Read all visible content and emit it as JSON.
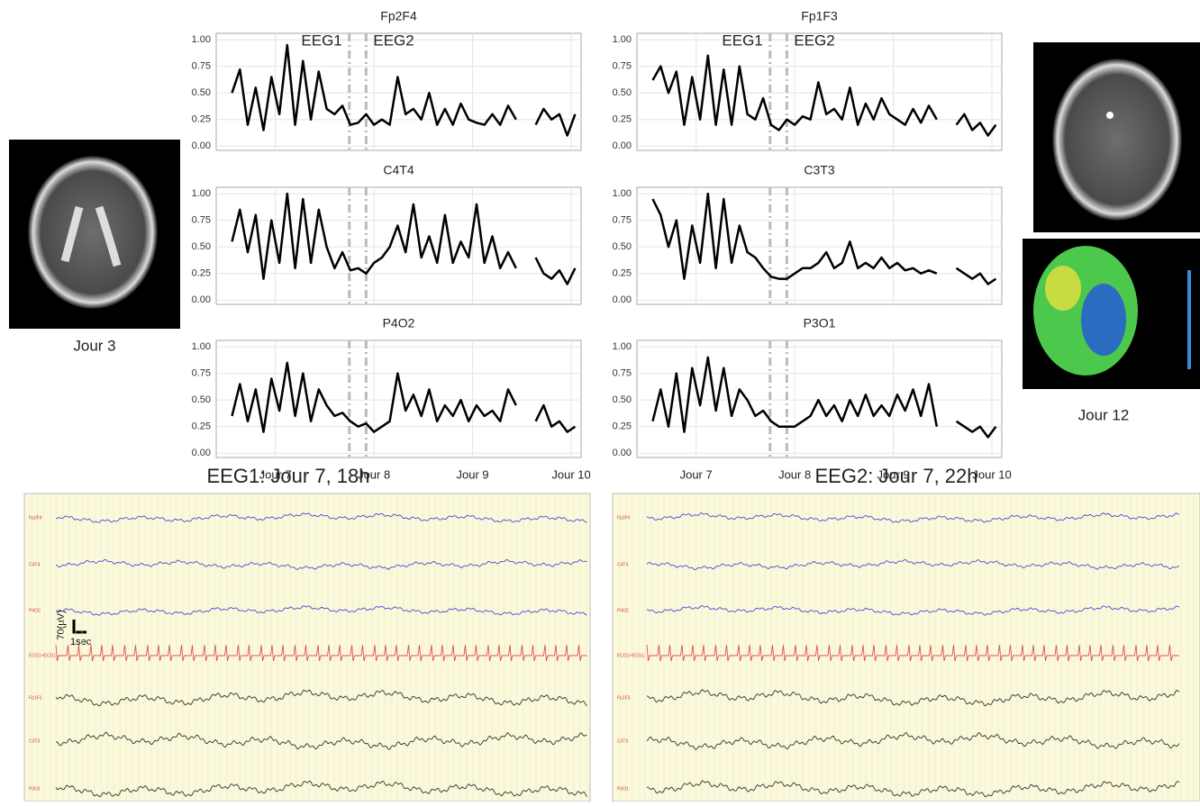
{
  "chart_data": [
    {
      "type": "line",
      "title": "Fp2F4",
      "grid": true,
      "x": [
        6.56,
        6.64,
        6.72,
        6.8,
        6.88,
        6.96,
        7.04,
        7.12,
        7.2,
        7.28,
        7.36,
        7.44,
        7.52,
        7.6,
        7.68,
        7.76,
        7.84,
        7.92,
        8.0,
        8.08,
        8.16,
        8.24,
        8.32,
        8.4,
        8.48,
        8.56,
        8.64,
        8.72,
        8.8,
        8.88,
        8.96,
        9.04,
        9.12,
        9.2,
        9.28,
        9.36,
        9.44,
        9.52,
        9.64,
        9.72,
        9.8,
        9.88,
        9.96,
        10.04
      ],
      "series": [
        {
          "color": "#000000",
          "values": [
            0.5,
            0.72,
            0.2,
            0.55,
            0.15,
            0.65,
            0.3,
            0.95,
            0.2,
            0.8,
            0.25,
            0.7,
            0.35,
            0.3,
            0.38,
            0.2,
            0.22,
            0.3,
            0.2,
            0.25,
            0.2,
            0.65,
            0.3,
            0.35,
            0.25,
            0.5,
            0.2,
            0.35,
            0.2,
            0.4,
            0.25,
            0.22,
            0.2,
            0.3,
            0.2,
            0.38,
            0.25,
            null,
            0.2,
            0.35,
            0.25,
            0.3,
            0.1,
            0.3
          ]
        }
      ],
      "xlim": [
        6.4,
        10.1
      ],
      "xticks": [
        {
          "value": 7,
          "label": "Jour 7"
        },
        {
          "value": 8,
          "label": "Jour 8"
        },
        {
          "value": 9,
          "label": "Jour 9"
        },
        {
          "value": 10,
          "label": "Jour 10"
        }
      ],
      "ylim": [
        -0.04,
        1.06
      ],
      "yticks": [
        {
          "value": 0,
          "label": "0.00"
        },
        {
          "value": 0.25,
          "label": "0.25"
        },
        {
          "value": 0.5,
          "label": "0.50"
        },
        {
          "value": 0.75,
          "label": "0.75"
        },
        {
          "value": 1,
          "label": "1.00"
        }
      ],
      "vlines": [
        7.75,
        7.92
      ],
      "annotations": [
        {
          "text": "EEG1",
          "x": 7.75
        },
        {
          "text": "EEG2",
          "x": 7.92
        }
      ]
    },
    {
      "type": "line",
      "title": "Fp1F3",
      "grid": true,
      "x": [
        6.56,
        6.64,
        6.72,
        6.8,
        6.88,
        6.96,
        7.04,
        7.12,
        7.2,
        7.28,
        7.36,
        7.44,
        7.52,
        7.6,
        7.68,
        7.76,
        7.84,
        7.92,
        8.0,
        8.08,
        8.16,
        8.24,
        8.32,
        8.4,
        8.48,
        8.56,
        8.64,
        8.72,
        8.8,
        8.88,
        8.96,
        9.04,
        9.12,
        9.2,
        9.28,
        9.36,
        9.44,
        9.52,
        9.64,
        9.72,
        9.8,
        9.88,
        9.96,
        10.04
      ],
      "series": [
        {
          "color": "#000000",
          "values": [
            0.62,
            0.75,
            0.5,
            0.7,
            0.2,
            0.65,
            0.25,
            0.85,
            0.2,
            0.72,
            0.2,
            0.75,
            0.3,
            0.25,
            0.45,
            0.2,
            0.15,
            0.25,
            0.2,
            0.28,
            0.25,
            0.6,
            0.3,
            0.35,
            0.25,
            0.55,
            0.2,
            0.4,
            0.25,
            0.45,
            0.3,
            0.25,
            0.2,
            0.35,
            0.22,
            0.38,
            0.25,
            null,
            0.2,
            0.3,
            0.15,
            0.22,
            0.1,
            0.2
          ]
        }
      ],
      "xlim": [
        6.4,
        10.1
      ],
      "xticks": [
        {
          "value": 7,
          "label": "Jour 7"
        },
        {
          "value": 8,
          "label": "Jour 8"
        },
        {
          "value": 9,
          "label": "Jour 9"
        },
        {
          "value": 10,
          "label": "Jour 10"
        }
      ],
      "ylim": [
        -0.04,
        1.06
      ],
      "yticks": [
        {
          "value": 0,
          "label": "0.00"
        },
        {
          "value": 0.25,
          "label": "0.25"
        },
        {
          "value": 0.5,
          "label": "0.50"
        },
        {
          "value": 0.75,
          "label": "0.75"
        },
        {
          "value": 1,
          "label": "1.00"
        }
      ],
      "vlines": [
        7.75,
        7.92
      ],
      "annotations": [
        {
          "text": "EEG1",
          "x": 7.75
        },
        {
          "text": "EEG2",
          "x": 7.92
        }
      ]
    },
    {
      "type": "line",
      "title": "C4T4",
      "grid": true,
      "x": [
        6.56,
        6.64,
        6.72,
        6.8,
        6.88,
        6.96,
        7.04,
        7.12,
        7.2,
        7.28,
        7.36,
        7.44,
        7.52,
        7.6,
        7.68,
        7.76,
        7.84,
        7.92,
        8.0,
        8.08,
        8.16,
        8.24,
        8.32,
        8.4,
        8.48,
        8.56,
        8.64,
        8.72,
        8.8,
        8.88,
        8.96,
        9.04,
        9.12,
        9.2,
        9.28,
        9.36,
        9.44,
        9.52,
        9.64,
        9.72,
        9.8,
        9.88,
        9.96,
        10.04
      ],
      "series": [
        {
          "color": "#000000",
          "values": [
            0.55,
            0.85,
            0.45,
            0.8,
            0.2,
            0.75,
            0.35,
            1.0,
            0.3,
            0.95,
            0.35,
            0.85,
            0.5,
            0.3,
            0.45,
            0.28,
            0.3,
            0.25,
            0.35,
            0.4,
            0.5,
            0.7,
            0.45,
            0.9,
            0.4,
            0.6,
            0.35,
            0.8,
            0.35,
            0.55,
            0.4,
            0.9,
            0.35,
            0.6,
            0.3,
            0.45,
            0.3,
            null,
            0.4,
            0.25,
            0.2,
            0.28,
            0.15,
            0.3
          ]
        }
      ],
      "xlim": [
        6.4,
        10.1
      ],
      "xticks": [
        {
          "value": 7,
          "label": "Jour 7"
        },
        {
          "value": 8,
          "label": "Jour 8"
        },
        {
          "value": 9,
          "label": "Jour 9"
        },
        {
          "value": 10,
          "label": "Jour 10"
        }
      ],
      "ylim": [
        -0.04,
        1.06
      ],
      "yticks": [
        {
          "value": 0,
          "label": "0.00"
        },
        {
          "value": 0.25,
          "label": "0.25"
        },
        {
          "value": 0.5,
          "label": "0.50"
        },
        {
          "value": 0.75,
          "label": "0.75"
        },
        {
          "value": 1,
          "label": "1.00"
        }
      ],
      "vlines": [
        7.75,
        7.92
      ]
    },
    {
      "type": "line",
      "title": "C3T3",
      "grid": true,
      "x": [
        6.56,
        6.64,
        6.72,
        6.8,
        6.88,
        6.96,
        7.04,
        7.12,
        7.2,
        7.28,
        7.36,
        7.44,
        7.52,
        7.6,
        7.68,
        7.76,
        7.84,
        7.92,
        8.0,
        8.08,
        8.16,
        8.24,
        8.32,
        8.4,
        8.48,
        8.56,
        8.64,
        8.72,
        8.8,
        8.88,
        8.96,
        9.04,
        9.12,
        9.2,
        9.28,
        9.36,
        9.44,
        9.52,
        9.64,
        9.72,
        9.8,
        9.88,
        9.96,
        10.04
      ],
      "series": [
        {
          "color": "#000000",
          "values": [
            0.95,
            0.8,
            0.5,
            0.75,
            0.2,
            0.7,
            0.35,
            1.0,
            0.3,
            0.95,
            0.35,
            0.7,
            0.45,
            0.4,
            0.3,
            0.22,
            0.2,
            0.2,
            0.25,
            0.3,
            0.3,
            0.35,
            0.45,
            0.3,
            0.35,
            0.55,
            0.3,
            0.35,
            0.3,
            0.4,
            0.3,
            0.35,
            0.28,
            0.3,
            0.25,
            0.28,
            0.25,
            null,
            0.3,
            0.25,
            0.2,
            0.25,
            0.15,
            0.2
          ]
        }
      ],
      "xlim": [
        6.4,
        10.1
      ],
      "xticks": [
        {
          "value": 7,
          "label": "Jour 7"
        },
        {
          "value": 8,
          "label": "Jour 8"
        },
        {
          "value": 9,
          "label": "Jour 9"
        },
        {
          "value": 10,
          "label": "Jour 10"
        }
      ],
      "ylim": [
        -0.04,
        1.06
      ],
      "yticks": [
        {
          "value": 0,
          "label": "0.00"
        },
        {
          "value": 0.25,
          "label": "0.25"
        },
        {
          "value": 0.5,
          "label": "0.50"
        },
        {
          "value": 0.75,
          "label": "0.75"
        },
        {
          "value": 1,
          "label": "1.00"
        }
      ],
      "vlines": [
        7.75,
        7.92
      ]
    },
    {
      "type": "line",
      "title": "P4O2",
      "grid": true,
      "x": [
        6.56,
        6.64,
        6.72,
        6.8,
        6.88,
        6.96,
        7.04,
        7.12,
        7.2,
        7.28,
        7.36,
        7.44,
        7.52,
        7.6,
        7.68,
        7.76,
        7.84,
        7.92,
        8.0,
        8.08,
        8.16,
        8.24,
        8.32,
        8.4,
        8.48,
        8.56,
        8.64,
        8.72,
        8.8,
        8.88,
        8.96,
        9.04,
        9.12,
        9.2,
        9.28,
        9.36,
        9.44,
        9.52,
        9.64,
        9.72,
        9.8,
        9.88,
        9.96,
        10.04
      ],
      "series": [
        {
          "color": "#000000",
          "values": [
            0.35,
            0.65,
            0.3,
            0.6,
            0.2,
            0.7,
            0.4,
            0.85,
            0.35,
            0.75,
            0.3,
            0.6,
            0.45,
            0.35,
            0.38,
            0.3,
            0.25,
            0.28,
            0.2,
            0.25,
            0.3,
            0.75,
            0.4,
            0.55,
            0.35,
            0.6,
            0.3,
            0.45,
            0.35,
            0.5,
            0.3,
            0.45,
            0.35,
            0.4,
            0.3,
            0.6,
            0.45,
            null,
            0.3,
            0.45,
            0.25,
            0.3,
            0.2,
            0.25
          ]
        }
      ],
      "xlim": [
        6.4,
        10.1
      ],
      "xticks": [
        {
          "value": 7,
          "label": "Jour 7"
        },
        {
          "value": 8,
          "label": "Jour 8"
        },
        {
          "value": 9,
          "label": "Jour 9"
        },
        {
          "value": 10,
          "label": "Jour 10"
        }
      ],
      "ylim": [
        -0.04,
        1.06
      ],
      "yticks": [
        {
          "value": 0,
          "label": "0.00"
        },
        {
          "value": 0.25,
          "label": "0.25"
        },
        {
          "value": 0.5,
          "label": "0.50"
        },
        {
          "value": 0.75,
          "label": "0.75"
        },
        {
          "value": 1,
          "label": "1.00"
        }
      ],
      "vlines": [
        7.75,
        7.92
      ]
    },
    {
      "type": "line",
      "title": "P3O1",
      "grid": true,
      "x": [
        6.56,
        6.64,
        6.72,
        6.8,
        6.88,
        6.96,
        7.04,
        7.12,
        7.2,
        7.28,
        7.36,
        7.44,
        7.52,
        7.6,
        7.68,
        7.76,
        7.84,
        7.92,
        8.0,
        8.08,
        8.16,
        8.24,
        8.32,
        8.4,
        8.48,
        8.56,
        8.64,
        8.72,
        8.8,
        8.88,
        8.96,
        9.04,
        9.12,
        9.2,
        9.28,
        9.36,
        9.44,
        9.52,
        9.64,
        9.72,
        9.8,
        9.88,
        9.96,
        10.04
      ],
      "series": [
        {
          "color": "#000000",
          "values": [
            0.3,
            0.6,
            0.25,
            0.75,
            0.2,
            0.8,
            0.45,
            0.9,
            0.4,
            0.8,
            0.35,
            0.6,
            0.5,
            0.35,
            0.4,
            0.3,
            0.25,
            0.25,
            0.25,
            0.3,
            0.35,
            0.5,
            0.35,
            0.45,
            0.3,
            0.5,
            0.35,
            0.55,
            0.35,
            0.45,
            0.35,
            0.55,
            0.4,
            0.6,
            0.35,
            0.65,
            0.25,
            null,
            0.3,
            0.25,
            0.2,
            0.25,
            0.15,
            0.25
          ]
        }
      ],
      "xlim": [
        6.4,
        10.1
      ],
      "xticks": [
        {
          "value": 7,
          "label": "Jour 7"
        },
        {
          "value": 8,
          "label": "Jour 8"
        },
        {
          "value": 9,
          "label": "Jour 9"
        },
        {
          "value": 10,
          "label": "Jour 10"
        }
      ],
      "ylim": [
        -0.04,
        1.06
      ],
      "yticks": [
        {
          "value": 0,
          "label": "0.00"
        },
        {
          "value": 0.25,
          "label": "0.25"
        },
        {
          "value": 0.5,
          "label": "0.50"
        },
        {
          "value": 0.75,
          "label": "0.75"
        },
        {
          "value": 1,
          "label": "1.00"
        }
      ],
      "vlines": [
        7.75,
        7.92
      ]
    }
  ],
  "images": [
    {
      "label": "Jour 3"
    },
    {
      "label": "Jour 12"
    }
  ],
  "eeg_recordings": [
    {
      "title": "EEG1: Jour 7, 18h"
    },
    {
      "title": "EEG2: Jour 7, 22h"
    }
  ],
  "eeg_channels": [
    "Fp2F4",
    "C4T4",
    "P4O2",
    "ECG1+ECG1-",
    "Fp1F3",
    "C3T3",
    "P3O1"
  ],
  "scale_bar": {
    "amplitude": "70(µV)",
    "time": "1sec"
  }
}
